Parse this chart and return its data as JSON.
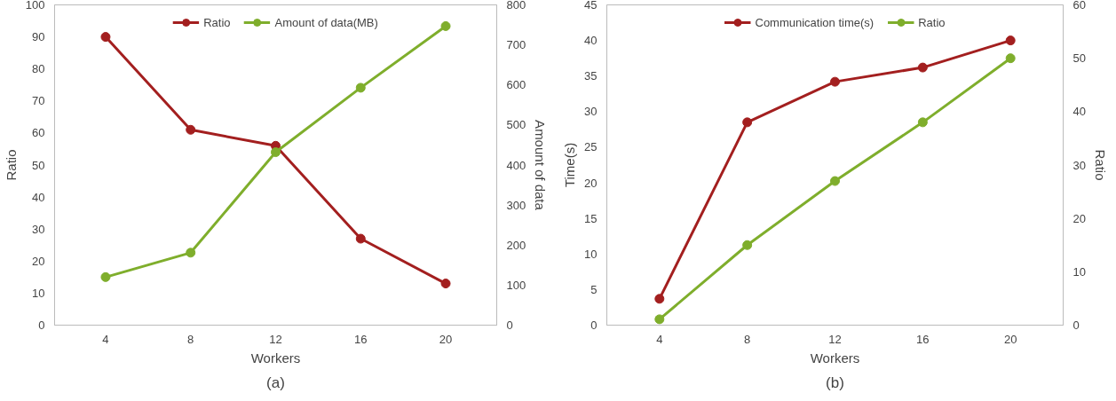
{
  "chart_data": [
    {
      "type": "line",
      "categories": [
        "4",
        "8",
        "12",
        "16",
        "20"
      ],
      "xlabel": "Workers",
      "ylabel": "Ratio",
      "y2label": "Amount of data",
      "ylim": [
        0,
        100
      ],
      "yticks": [
        0,
        10,
        20,
        30,
        40,
        50,
        60,
        70,
        80,
        90,
        100
      ],
      "y2lim": [
        0,
        800
      ],
      "y2ticks": [
        0,
        100,
        200,
        300,
        400,
        500,
        600,
        700,
        800
      ],
      "series": [
        {
          "name": "Ratio",
          "color": "#a31f1f",
          "values": [
            90,
            61,
            56,
            27,
            13
          ]
        },
        {
          "name": "Amount of data(MB)",
          "color": "#7fae2c",
          "axis": "y2",
          "values": [
            120,
            181,
            432,
            593,
            747
          ]
        }
      ],
      "legend": "top",
      "marker": "circle",
      "grid": false,
      "annotations": [
        "(a)"
      ]
    },
    {
      "type": "line",
      "categories": [
        "4",
        "8",
        "12",
        "16",
        "20"
      ],
      "xlabel": "Workers",
      "ylabel": "Time(s)",
      "y2label": "Ratio",
      "ylim": [
        0,
        45
      ],
      "yticks": [
        0,
        5,
        10,
        15,
        20,
        25,
        30,
        35,
        40,
        45
      ],
      "y2lim": [
        0,
        60
      ],
      "y2ticks": [
        0,
        10,
        20,
        30,
        40,
        50,
        60
      ],
      "series": [
        {
          "name": "Communication time(s)",
          "color": "#a31f1f",
          "values": [
            3.7,
            28.5,
            34.2,
            36.2,
            40.0
          ]
        },
        {
          "name": "Ratio",
          "color": "#7fae2c",
          "axis": "y2",
          "values": [
            1.1,
            15,
            27,
            38,
            50
          ]
        }
      ],
      "legend": "top",
      "marker": "circle",
      "grid": false,
      "annotations": [
        "(b)"
      ]
    }
  ]
}
